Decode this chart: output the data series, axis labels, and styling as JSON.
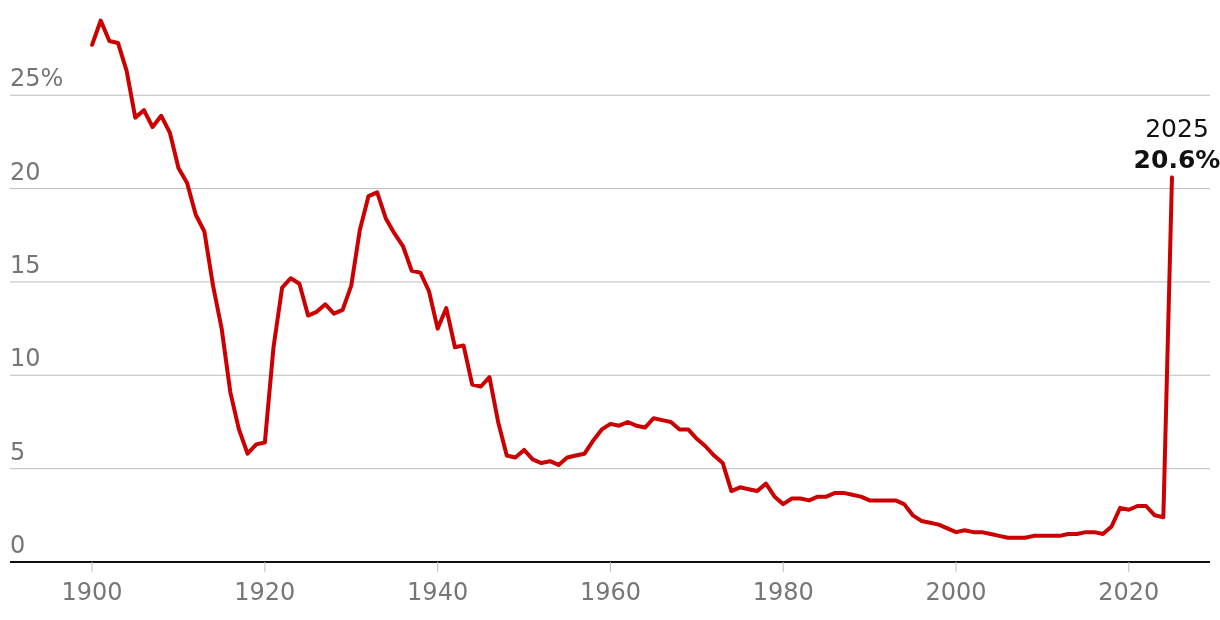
{
  "chart_data": {
    "type": "line",
    "x": [
      1900,
      1901,
      1902,
      1903,
      1904,
      1905,
      1906,
      1907,
      1908,
      1909,
      1910,
      1911,
      1912,
      1913,
      1914,
      1915,
      1916,
      1917,
      1918,
      1919,
      1920,
      1921,
      1922,
      1923,
      1924,
      1925,
      1926,
      1927,
      1928,
      1929,
      1930,
      1931,
      1932,
      1933,
      1934,
      1935,
      1936,
      1937,
      1938,
      1939,
      1940,
      1941,
      1942,
      1943,
      1944,
      1945,
      1946,
      1947,
      1948,
      1949,
      1950,
      1951,
      1952,
      1953,
      1954,
      1955,
      1956,
      1957,
      1958,
      1959,
      1960,
      1961,
      1962,
      1963,
      1964,
      1965,
      1966,
      1967,
      1968,
      1969,
      1970,
      1971,
      1972,
      1973,
      1974,
      1975,
      1976,
      1977,
      1978,
      1979,
      1980,
      1981,
      1982,
      1983,
      1984,
      1985,
      1986,
      1987,
      1988,
      1989,
      1990,
      1991,
      1992,
      1993,
      1994,
      1995,
      1996,
      1997,
      1998,
      1999,
      2000,
      2001,
      2002,
      2003,
      2004,
      2005,
      2006,
      2007,
      2008,
      2009,
      2010,
      2011,
      2012,
      2013,
      2014,
      2015,
      2016,
      2017,
      2018,
      2019,
      2020,
      2021,
      2022,
      2023,
      2024,
      2025
    ],
    "series": [
      {
        "color": "#cc0000",
        "values": [
          27.7,
          29.0,
          27.9,
          27.8,
          26.3,
          23.8,
          24.2,
          23.3,
          23.9,
          23.0,
          21.1,
          20.3,
          18.6,
          17.7,
          14.8,
          12.5,
          9.1,
          7.1,
          5.8,
          6.3,
          6.4,
          11.5,
          14.7,
          15.2,
          14.9,
          13.2,
          13.4,
          13.8,
          13.3,
          13.5,
          14.8,
          17.8,
          19.6,
          19.8,
          18.4,
          17.6,
          16.9,
          15.6,
          15.5,
          14.5,
          12.5,
          13.6,
          11.5,
          11.6,
          9.5,
          9.4,
          9.9,
          7.5,
          5.7,
          5.6,
          6.0,
          5.5,
          5.3,
          5.4,
          5.2,
          5.6,
          5.7,
          5.8,
          6.5,
          7.1,
          7.4,
          7.3,
          7.5,
          7.3,
          7.2,
          7.7,
          7.6,
          7.5,
          7.1,
          7.1,
          6.6,
          6.2,
          5.7,
          5.3,
          3.8,
          4.0,
          3.9,
          3.8,
          4.2,
          3.5,
          3.1,
          3.4,
          3.4,
          3.3,
          3.5,
          3.5,
          3.7,
          3.7,
          3.6,
          3.5,
          3.3,
          3.3,
          3.3,
          3.3,
          3.1,
          2.5,
          2.2,
          2.1,
          2.0,
          1.8,
          1.6,
          1.7,
          1.6,
          1.6,
          1.5,
          1.4,
          1.3,
          1.3,
          1.3,
          1.4,
          1.4,
          1.4,
          1.4,
          1.5,
          1.5,
          1.6,
          1.6,
          1.5,
          1.9,
          2.9,
          2.8,
          3.0,
          3.0,
          2.5,
          2.4,
          20.6
        ]
      }
    ],
    "xlim": [
      1890.5,
      2029.4
    ],
    "xticks": [
      1900,
      1920,
      1940,
      1960,
      1980,
      2000,
      2020
    ],
    "ylim": [
      0,
      30.1
    ],
    "yticks": [
      0,
      5,
      10,
      15,
      {
        "value": 25,
        "label": "25%"
      },
      20
    ],
    "grid": "y",
    "marker": "none",
    "line_style": "solid",
    "annotations": [
      {
        "text": "2025",
        "x": 2025,
        "y": 20.6
      },
      {
        "text": "20.6%",
        "x": 2025,
        "y": 20.6
      }
    ]
  }
}
